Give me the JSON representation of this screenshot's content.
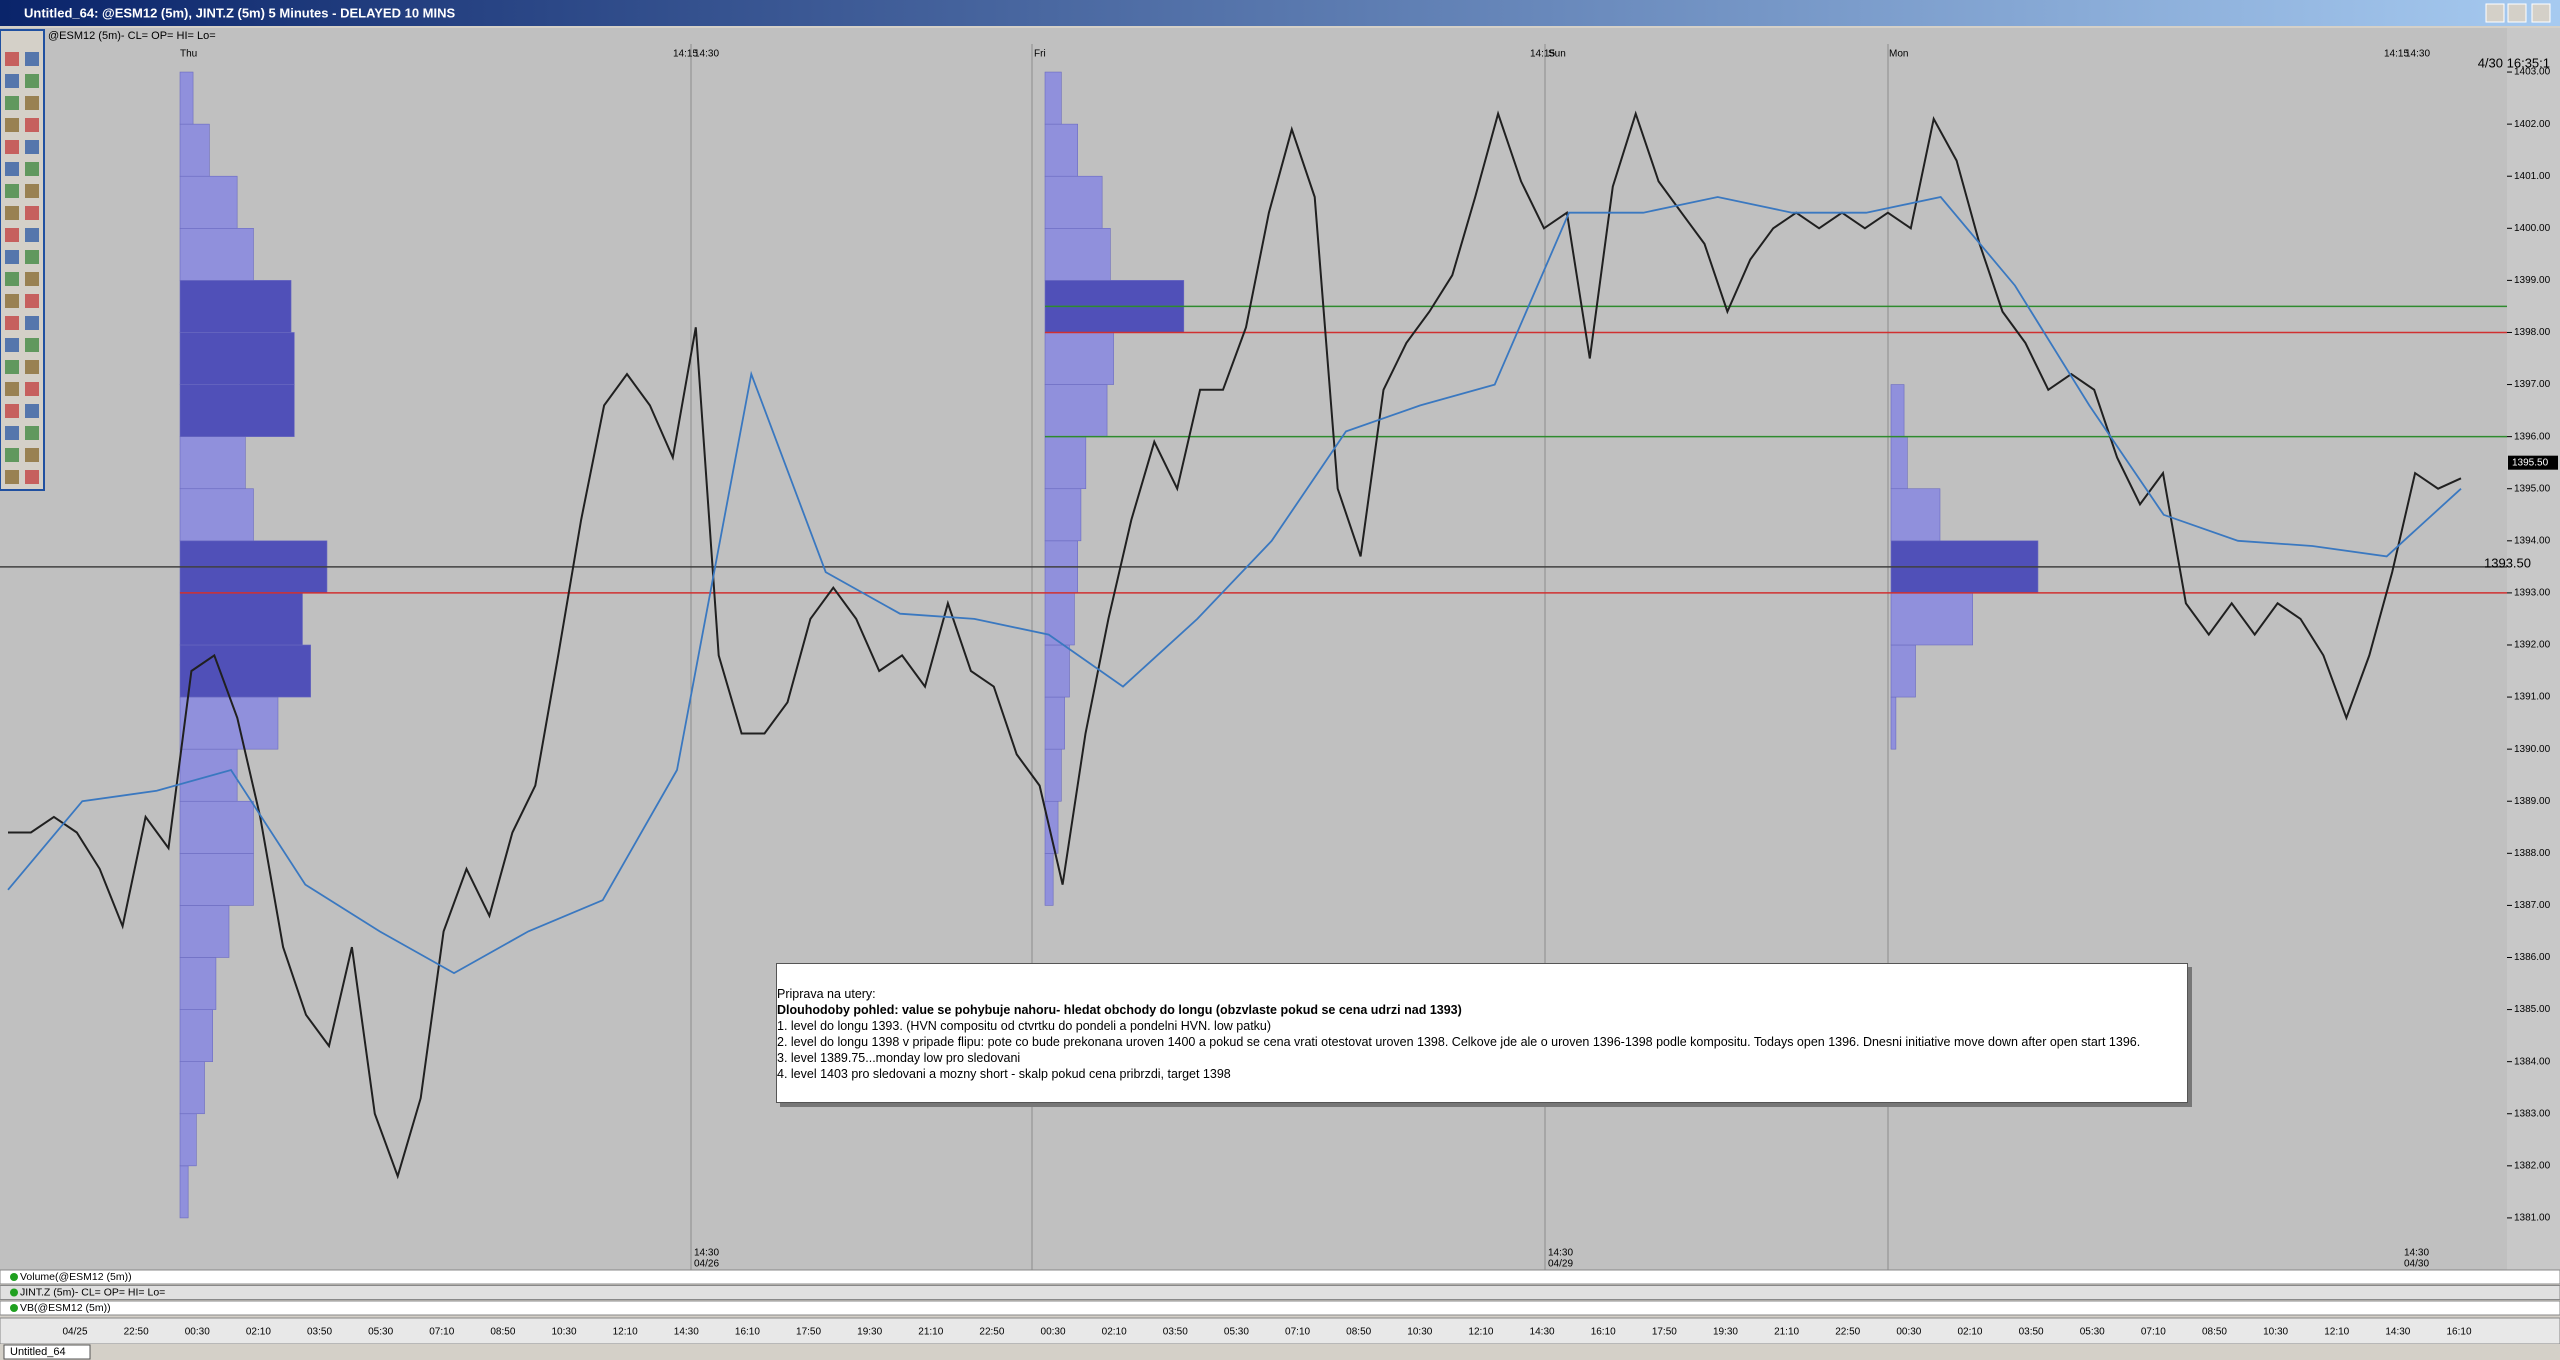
{
  "window": {
    "title": "Untitled_64: @ESM12 (5m), JINT.Z (5m) 5 Minutes - DELAYED 10 MINS"
  },
  "chart_data": {
    "type": "line",
    "header": "@ESM12 (5m)- CL= OP= HI= Lo=",
    "timestamp": "4/30 16:35:1",
    "ylim": [
      1380,
      1403.5
    ],
    "yticks": [
      {
        "value": 1381,
        "label": "1381.00"
      },
      {
        "value": 1382,
        "label": "1382.00"
      },
      {
        "value": 1383,
        "label": "1383.00"
      },
      {
        "value": 1384,
        "label": "1384.00"
      },
      {
        "value": 1385,
        "label": "1385.00"
      },
      {
        "value": 1386,
        "label": "1386.00"
      },
      {
        "value": 1387,
        "label": "1387.00"
      },
      {
        "value": 1388,
        "label": "1388.00"
      },
      {
        "value": 1389,
        "label": "1389.00"
      },
      {
        "value": 1390,
        "label": "1390.00"
      },
      {
        "value": 1391,
        "label": "1391.00"
      },
      {
        "value": 1392,
        "label": "1392.00"
      },
      {
        "value": 1393,
        "label": "1393.00"
      },
      {
        "value": 1394,
        "label": "1394.00"
      },
      {
        "value": 1395,
        "label": "1395.00"
      },
      {
        "value": 1396,
        "label": "1396.00"
      },
      {
        "value": 1397,
        "label": "1397.00"
      },
      {
        "value": 1398,
        "label": "1398.00"
      },
      {
        "value": 1399,
        "label": "1399.00"
      },
      {
        "value": 1400,
        "label": "1400.00"
      },
      {
        "value": 1401,
        "label": "1401.00"
      },
      {
        "value": 1402,
        "label": "1402.00"
      },
      {
        "value": 1403,
        "label": "1403.00"
      }
    ],
    "top_labels": [
      "Thu",
      "14:15",
      "14:30",
      "Fri",
      "14:15",
      "Sun",
      "Mon",
      "14:15",
      "14:30"
    ],
    "date_markers": [
      {
        "time": "14:30",
        "date": "04/26"
      },
      {
        "time": "14:30",
        "date": "04/29"
      },
      {
        "time": "14:30",
        "date": "04/30"
      }
    ],
    "x_labels": [
      "04/25",
      "22:50",
      "00:30",
      "02:10",
      "03:50",
      "05:30",
      "07:10",
      "08:50",
      "10:30",
      "12:10",
      "14:30",
      "16:10",
      "17:50",
      "19:30",
      "21:10",
      "22:50",
      "00:30",
      "02:10",
      "03:50",
      "05:30",
      "07:10",
      "08:50",
      "10:30",
      "12:10",
      "14:30",
      "16:10",
      "17:50",
      "19:30",
      "21:10",
      "22:50",
      "00:30",
      "02:10",
      "03:50",
      "05:30",
      "07:10",
      "08:50",
      "10:30",
      "12:10",
      "14:30",
      "16:10"
    ],
    "series": [
      {
        "color": "#202020",
        "values": [
          1388.4,
          1388.4,
          1388.7,
          1388.4,
          1387.7,
          1386.6,
          1388.7,
          1388.1,
          1391.5,
          1391.8,
          1390.6,
          1388.7,
          1386.2,
          1384.9,
          1384.3,
          1386.2,
          1383.0,
          1381.8,
          1383.3,
          1386.5,
          1387.7,
          1386.8,
          1388.4,
          1389.3,
          1391.8,
          1394.4,
          1396.6,
          1397.2,
          1396.6,
          1395.6,
          1398.1,
          1391.8,
          1390.3,
          1390.3,
          1390.9,
          1392.5,
          1393.1,
          1392.5,
          1391.5,
          1391.8,
          1391.2,
          1392.8,
          1391.5,
          1391.2,
          1389.9,
          1389.3,
          1387.4,
          1390.3,
          1392.5,
          1394.4,
          1395.9,
          1395.0,
          1396.9,
          1396.9,
          1398.1,
          1400.3,
          1401.9,
          1400.6,
          1395.0,
          1393.7,
          1396.9,
          1397.8,
          1398.4,
          1399.1,
          1400.6,
          1402.2,
          1400.9,
          1400.0,
          1400.3,
          1397.5,
          1400.8,
          1402.2,
          1400.9,
          1400.3,
          1399.7,
          1398.4,
          1399.4,
          1400.0,
          1400.3,
          1400.0,
          1400.3,
          1400.0,
          1400.3,
          1400.0,
          1402.1,
          1401.3,
          1399.7,
          1398.4,
          1397.8,
          1396.9,
          1397.2,
          1396.9,
          1395.6,
          1394.7,
          1395.3,
          1392.8,
          1392.2,
          1392.8,
          1392.2,
          1392.8,
          1392.5,
          1391.8,
          1390.6,
          1391.8,
          1393.4,
          1395.3,
          1395.0,
          1395.2
        ]
      },
      {
        "color": "#3a78c0",
        "values": [
          1387.3,
          1389.0,
          1389.2,
          1389.6,
          1387.4,
          1386.5,
          1385.7,
          1386.5,
          1387.1,
          1389.6,
          1397.2,
          1393.4,
          1392.6,
          1392.5,
          1392.2,
          1391.2,
          1392.5,
          1394.0,
          1396.1,
          1396.6,
          1397.0,
          1400.3,
          1400.3,
          1400.6,
          1400.3,
          1400.3,
          1400.6,
          1398.9,
          1396.6,
          1394.5,
          1394.0,
          1393.9,
          1393.7,
          1395.0
        ]
      }
    ],
    "levels": [
      {
        "value": 1398.5,
        "color": "#2e8b2e"
      },
      {
        "value": 1398,
        "color": "#d03030"
      },
      {
        "value": 1396,
        "color": "#2e8b2e"
      },
      {
        "value": 1393,
        "color": "#d03030"
      },
      {
        "value": 1393.5,
        "color": "#404040",
        "value_label": "1393.50"
      }
    ],
    "last_price": {
      "value": 1395.5,
      "label": "1395.50"
    },
    "profiles": [
      {
        "range": [
          1381,
          1403
        ],
        "color": "#9090dc",
        "values": [
          5,
          10,
          15,
          20,
          22,
          30,
          45,
          45,
          35,
          60,
          80,
          75,
          90,
          45,
          40,
          70,
          70,
          68,
          45,
          35,
          18,
          8
        ]
      },
      {
        "range": [
          1387,
          1403
        ],
        "color": "#9090dc",
        "values": [
          5,
          8,
          10,
          12,
          15,
          18,
          20,
          22,
          25,
          38,
          42,
          85,
          40,
          35,
          20,
          10
        ]
      },
      {
        "range": [
          1390,
          1397
        ],
        "color": "#9090dc",
        "values": [
          3,
          15,
          50,
          90,
          30,
          10,
          8
        ]
      }
    ]
  },
  "panels": [
    "Volume(@ESM12 (5m))",
    "JINT.Z (5m)- CL= OP= HI= Lo=",
    "VB(@ESM12 (5m))"
  ],
  "note": {
    "lines": [
      "Priprava na utery:",
      "Dlouhodoby pohled: value se pohybuje nahoru- hledat obchody do longu (obzvlaste pokud se cena udrzi nad 1393)",
      "1. level do longu 1393. (HVN compositu od ctvrtku do pondeli a pondelni HVN.  low patku)",
      "2. level do longu 1398 v pripade flipu: pote co bude prekonana uroven 1400 a pokud se cena vrati otestovat uroven 1398. Celkove jde ale o uroven 1396-1398 podle kompositu. Todays open 1396. Dnesni initiative move down after open start 1396.",
      "3. level 1389.75...monday low pro sledovani",
      "4. level 1403 pro sledovani a mozny short - skalp pokud cena pribrzdi, target 1398"
    ]
  },
  "tab": "Untitled_64"
}
